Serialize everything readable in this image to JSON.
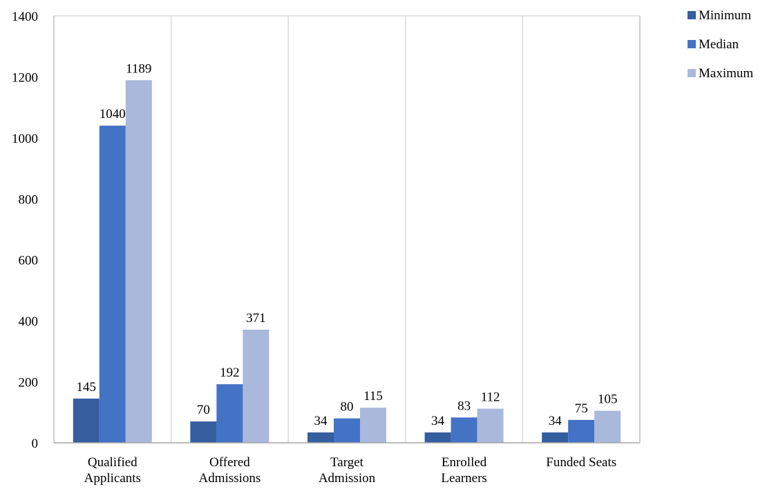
{
  "chart_data": {
    "type": "bar",
    "categories": [
      [
        "Qualified",
        "Applicants"
      ],
      [
        "Offered",
        "Admissions"
      ],
      [
        "Target",
        "Admission"
      ],
      [
        "Enrolled",
        "Learners"
      ],
      [
        "Funded Seats"
      ]
    ],
    "series": [
      {
        "name": "Minimum",
        "color": "#355e9f",
        "values": [
          145,
          70,
          34,
          34,
          34
        ]
      },
      {
        "name": "Median",
        "color": "#4472c4",
        "values": [
          1040,
          192,
          80,
          83,
          75
        ]
      },
      {
        "name": "Maximum",
        "color": "#a9b8db",
        "values": [
          1189,
          371,
          115,
          112,
          105
        ]
      }
    ],
    "ylim": [
      0,
      1400
    ],
    "yticks": [
      0,
      200,
      400,
      600,
      800,
      1000,
      1200,
      1400
    ],
    "grid": "vertical category separators",
    "legend_position": "top-right",
    "title": "",
    "xlabel": "",
    "ylabel": ""
  }
}
